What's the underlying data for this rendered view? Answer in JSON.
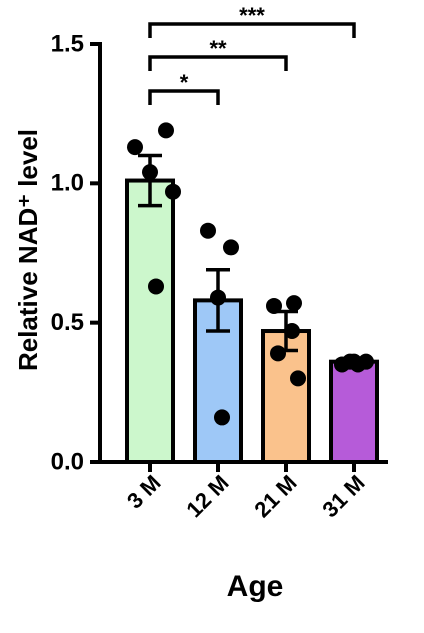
{
  "chart_data": {
    "type": "bar",
    "categories": [
      "3 M",
      "12 M",
      "21 M",
      "31 M"
    ],
    "values": [
      1.01,
      0.58,
      0.47,
      0.36
    ],
    "errors": [
      0.09,
      0.11,
      0.07,
      0.01
    ],
    "colors": [
      "#ccf7cc",
      "#9ec8f7",
      "#fac28c",
      "#b65bd9"
    ],
    "points": [
      [
        1.13,
        1.19,
        1.04,
        0.97,
        0.63
      ],
      [
        0.83,
        0.77,
        0.59,
        0.16
      ],
      [
        0.56,
        0.57,
        0.47,
        0.39,
        0.3
      ],
      [
        0.35,
        0.36,
        0.35,
        0.36,
        0.36
      ]
    ],
    "annotations": [
      "*",
      "**",
      "***"
    ],
    "ylabel": "Relative NAD⁺ level",
    "xlabel": "Age",
    "ylim": [
      0,
      1.5
    ],
    "yticks": [
      {
        "value": 0,
        "label": "0.0"
      },
      0.5,
      {
        "value": 1,
        "label": "1.0"
      },
      1.5
    ]
  }
}
